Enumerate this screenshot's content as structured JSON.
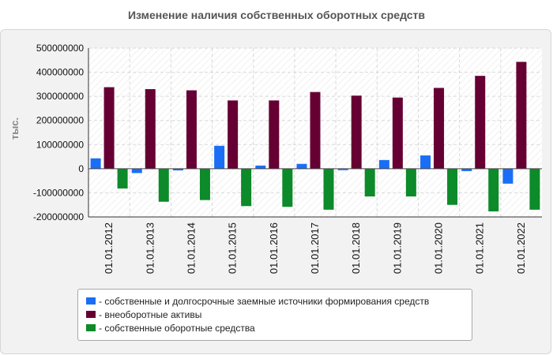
{
  "chart_data": {
    "type": "bar",
    "title": "Изменение наличия собственных оборотных средств",
    "ylabel": "тыс.",
    "xlabel": "",
    "ylim": [
      -200000000,
      500000000
    ],
    "yticks": [
      500000000,
      400000000,
      300000000,
      200000000,
      100000000,
      0,
      -100000000,
      -200000000
    ],
    "ytick_labels": [
      "500000000",
      "400000000",
      "300000000",
      "200000000",
      "100000000",
      "0",
      "-100000000",
      "-200000000"
    ],
    "categories": [
      "01.01.2012",
      "01.01.2013",
      "01.01.2014",
      "01.01.2015",
      "01.01.2016",
      "01.01.2017",
      "01.01.2018",
      "01.01.2019",
      "01.01.2020",
      "01.01.2021",
      "01.01.2022"
    ],
    "series": [
      {
        "name": "- собственные и долгосрочные заемные источники формирования средств",
        "color": "#1a6ef5",
        "values": [
          43000000,
          -18000000,
          -7000000,
          95000000,
          13000000,
          20000000,
          -6000000,
          36000000,
          55000000,
          -10000000,
          -62000000
        ]
      },
      {
        "name": "- внеоборотные активы",
        "color": "#660033",
        "values": [
          338000000,
          330000000,
          325000000,
          283000000,
          283000000,
          318000000,
          303000000,
          295000000,
          335000000,
          385000000,
          443000000
        ]
      },
      {
        "name": "- собственные оборотные средства",
        "color": "#0d8a2a",
        "values": [
          -82000000,
          -137000000,
          -130000000,
          -155000000,
          -158000000,
          -170000000,
          -115000000,
          -115000000,
          -150000000,
          -177000000,
          -170000000
        ]
      }
    ],
    "grid": true,
    "legend_position": "bottom"
  }
}
